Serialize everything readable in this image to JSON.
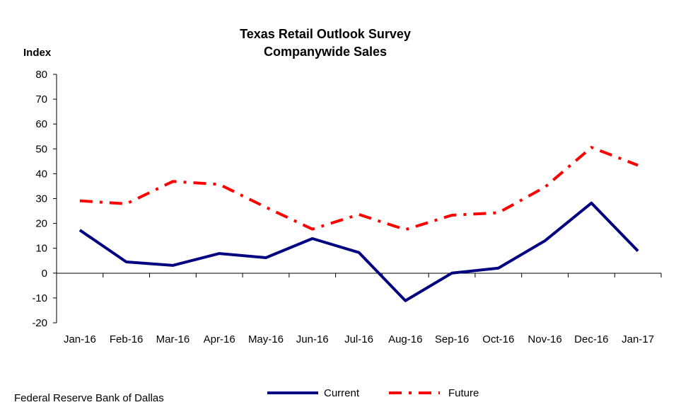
{
  "chart_data": {
    "type": "line",
    "title": "Texas Retail Outlook Survey",
    "subtitle": "Companywide  Sales",
    "ylabel": "Index",
    "xlabel": "",
    "ylim": [
      -20,
      80
    ],
    "yticks": [
      -20,
      -10,
      0,
      10,
      20,
      30,
      40,
      50,
      60,
      70,
      80
    ],
    "categories": [
      "Jan-16",
      "Feb-16",
      "Mar-16",
      "Apr-16",
      "May-16",
      "Jun-16",
      "Jul-16",
      "Aug-16",
      "Sep-16",
      "Oct-16",
      "Nov-16",
      "Dec-16",
      "Jan-17"
    ],
    "series": [
      {
        "name": "Current",
        "color": "#000080",
        "style": "solid",
        "values": [
          17.3,
          4.5,
          3.1,
          7.9,
          6.2,
          13.9,
          8.3,
          -11.1,
          0.0,
          2.0,
          13.0,
          28.2,
          8.9
        ]
      },
      {
        "name": "Future",
        "color": "#ff0000",
        "style": "dash-dot",
        "values": [
          29.1,
          27.9,
          36.9,
          35.7,
          26.5,
          17.7,
          23.6,
          17.5,
          23.3,
          24.3,
          34.6,
          50.6,
          43.4
        ]
      }
    ],
    "grid": false,
    "legend_position": "bottom-center"
  },
  "source": "Federal Reserve Bank of Dallas"
}
